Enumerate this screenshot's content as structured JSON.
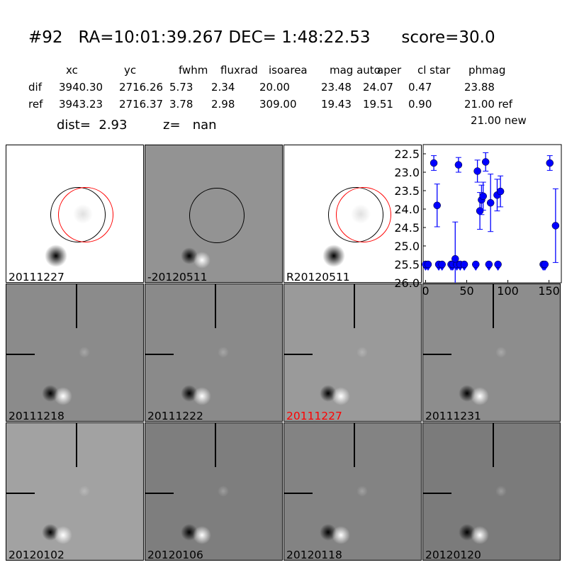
{
  "header": {
    "title": "#92   RA=10:01:39.267 DEC= 1:48:22.53      score=30.0",
    "columns": [
      "xc",
      "yc",
      "fwhm",
      "fluxrad",
      "isoarea",
      "mag auto",
      "aper",
      "cl star",
      "phmag"
    ],
    "rows": [
      {
        "label": "dif",
        "values": [
          "3940.30",
          "2716.26",
          "5.73",
          "2.34",
          "20.00",
          "23.48",
          "24.07",
          "0.47",
          "23.88"
        ]
      },
      {
        "label": "ref",
        "values": [
          "3943.23",
          "2716.37",
          "3.78",
          "2.98",
          "309.00",
          "19.43",
          "19.51",
          "0.90",
          "21.00 ref"
        ]
      }
    ],
    "extra_phmag": "21.00 new",
    "dist": "dist=  2.93",
    "z": "z=   nan"
  },
  "top_panels": [
    {
      "label": "20111227",
      "kind": "ref"
    },
    {
      "label": "-20120511",
      "kind": "diff"
    },
    {
      "label": "R20120511",
      "kind": "ref"
    }
  ],
  "stamps": [
    {
      "label": "20111218",
      "bg": "#8b8b8b",
      "highlight": false
    },
    {
      "label": "20111222",
      "bg": "#8a8a8a",
      "highlight": false
    },
    {
      "label": "20111227",
      "bg": "#9a9a9a",
      "highlight": true
    },
    {
      "label": "20111231",
      "bg": "#8d8d8d",
      "highlight": false
    },
    {
      "label": "20120102",
      "bg": "#a2a2a2",
      "highlight": false
    },
    {
      "label": "20120106",
      "bg": "#7e7e7e",
      "highlight": false
    },
    {
      "label": "20120118",
      "bg": "#838383",
      "highlight": false
    },
    {
      "label": "20120120",
      "bg": "#7b7b7b",
      "highlight": false
    }
  ],
  "colors": {
    "point": "#0000ff",
    "highlight_label": "#ff0000",
    "circle_ref": "#000000",
    "circle_new": "#ff0000"
  },
  "chart_data": {
    "type": "scatter",
    "title": "",
    "xlabel": "",
    "ylabel": "",
    "xlim": [
      -3,
      165
    ],
    "ylim": [
      26.0,
      22.25
    ],
    "y_inverted": true,
    "xticks": [
      "0",
      "50",
      "100",
      "150"
    ],
    "yticks": [
      "22.5",
      "23.0",
      "23.5",
      "24.0",
      "24.5",
      "25.0",
      "25.5",
      "26.0"
    ],
    "detections": [
      {
        "x": 10,
        "y": 22.75,
        "err": 0.2
      },
      {
        "x": 14,
        "y": 23.9,
        "err": 0.58
      },
      {
        "x": 36,
        "y": 25.35,
        "err": 1.0
      },
      {
        "x": 40,
        "y": 22.8,
        "err": 0.2
      },
      {
        "x": 63,
        "y": 22.97,
        "err": 0.3
      },
      {
        "x": 66,
        "y": 24.05,
        "err": 0.5
      },
      {
        "x": 68,
        "y": 23.75,
        "err": 0.4
      },
      {
        "x": 70,
        "y": 23.65,
        "err": 0.38
      },
      {
        "x": 73,
        "y": 22.72,
        "err": 0.25
      },
      {
        "x": 79,
        "y": 23.83,
        "err": 0.78
      },
      {
        "x": 87,
        "y": 23.62,
        "err": 0.43
      },
      {
        "x": 91,
        "y": 23.52,
        "err": 0.42
      },
      {
        "x": 151,
        "y": 22.75,
        "err": 0.2
      },
      {
        "x": 158,
        "y": 24.45,
        "err": 1.0
      }
    ],
    "upper_limits": {
      "y": 25.5,
      "x": [
        0,
        3,
        16,
        20,
        31,
        33,
        38,
        42,
        47,
        61,
        77,
        88,
        143,
        145
      ]
    }
  }
}
